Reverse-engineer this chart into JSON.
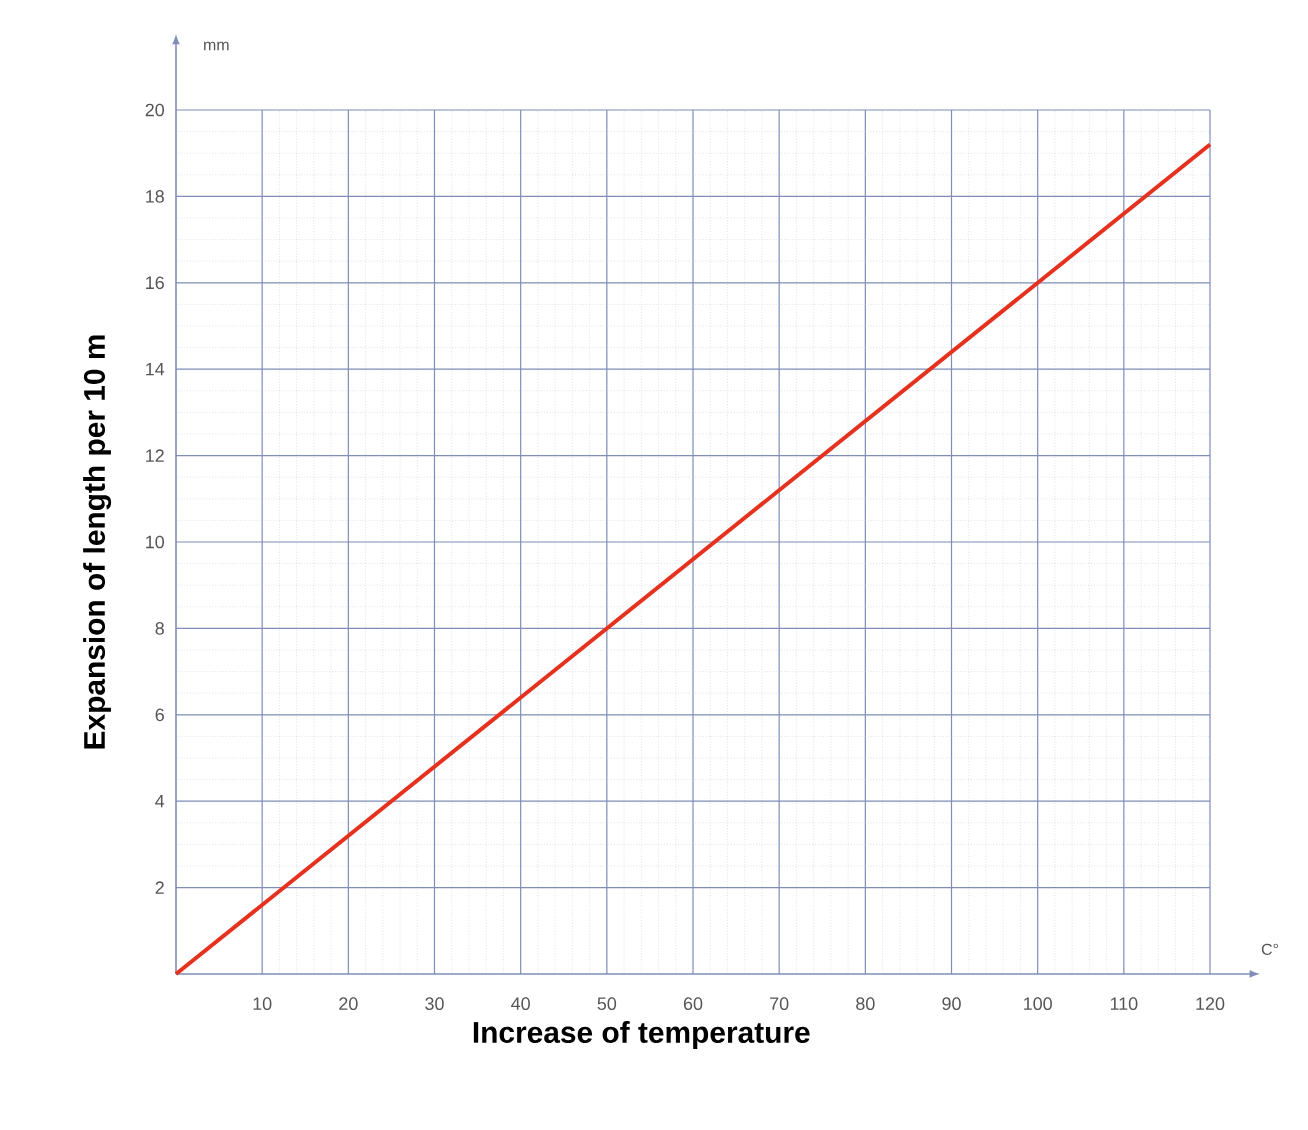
{
  "chart_data": {
    "type": "line",
    "xlabel": "Increase of temperature",
    "ylabel": "Expansion of length per 10 m",
    "annotations": [
      "mm",
      "C°"
    ],
    "x": [
      0,
      120
    ],
    "series": [
      {
        "color": "#e5321f",
        "values": [
          0,
          19.2
        ]
      }
    ],
    "xlim": [
      0,
      120
    ],
    "ylim": [
      0,
      20
    ],
    "xticks": [
      10,
      20,
      30,
      40,
      50,
      60,
      70,
      80,
      90,
      100,
      110,
      120
    ],
    "yticks": [
      2,
      4,
      6,
      8,
      10,
      12,
      14,
      16,
      18,
      20
    ],
    "grid": true,
    "line_style": "solid",
    "marker": "none"
  }
}
